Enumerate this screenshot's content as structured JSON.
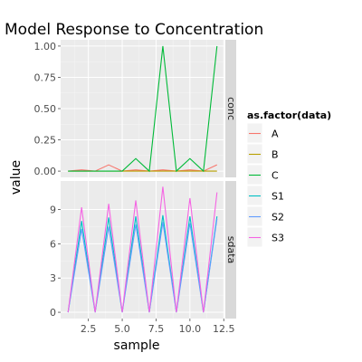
{
  "chart_data": {
    "type": "line",
    "title": "Model Response to Concentration",
    "xlabel": "sample",
    "ylabel": "value",
    "legend_title": "as.factor(data)",
    "legend_position": "right",
    "grid": true,
    "xlim": [
      0.45,
      12.55
    ],
    "x_ticks": [
      2.5,
      5.0,
      7.5,
      10.0,
      12.5
    ],
    "x_tick_labels": [
      "2.5",
      "5.0",
      "7.5",
      "10.0",
      "12.5"
    ],
    "x": [
      1,
      2,
      3,
      4,
      5,
      6,
      7,
      8,
      9,
      10,
      11,
      12
    ],
    "series_colors": {
      "A": "#F8766D",
      "B": "#B79F00",
      "C": "#00BA38",
      "S1": "#00BFC4",
      "S2": "#619CFF",
      "S3": "#F564E3"
    },
    "panels": [
      {
        "strip": "conc",
        "ylim": [
          -0.05,
          1.05
        ],
        "y_ticks": [
          0,
          0.25,
          0.5,
          0.75,
          1.0
        ],
        "y_tick_labels": [
          "0.00",
          "0.25",
          "0.50",
          "0.75",
          "1.00"
        ],
        "series": [
          {
            "name": "A",
            "values": [
              0,
              0.01,
              0,
              0.05,
              0,
              0.01,
              0,
              0.01,
              0,
              0.01,
              0,
              0.05
            ]
          },
          {
            "name": "B",
            "values": [
              0,
              0,
              0,
              0,
              0,
              0,
              0,
              0,
              0,
              0,
              0,
              0
            ]
          },
          {
            "name": "C",
            "values": [
              0,
              0,
              0,
              0,
              0,
              0.1,
              0,
              1.0,
              0,
              0.1,
              0,
              1.0
            ]
          }
        ]
      },
      {
        "strip": "sdata",
        "ylim": [
          -0.55,
          11.5
        ],
        "y_ticks": [
          0,
          3,
          6,
          9
        ],
        "y_tick_labels": [
          "0",
          "3",
          "6",
          "9"
        ],
        "series": [
          {
            "name": "S1",
            "values": [
              0,
              8.0,
              0,
              8.3,
              0,
              8.4,
              0,
              8.5,
              0,
              8.4,
              0,
              8.4
            ]
          },
          {
            "name": "S2",
            "values": [
              0,
              7.3,
              0,
              7.5,
              0,
              7.7,
              0,
              7.9,
              0,
              7.8,
              0,
              8.2
            ]
          },
          {
            "name": "S3",
            "values": [
              0,
              9.2,
              0,
              9.5,
              0,
              9.8,
              0,
              11.0,
              0,
              10.0,
              0,
              10.5
            ]
          }
        ]
      }
    ],
    "legend": [
      "A",
      "B",
      "C",
      "S1",
      "S2",
      "S3"
    ]
  }
}
